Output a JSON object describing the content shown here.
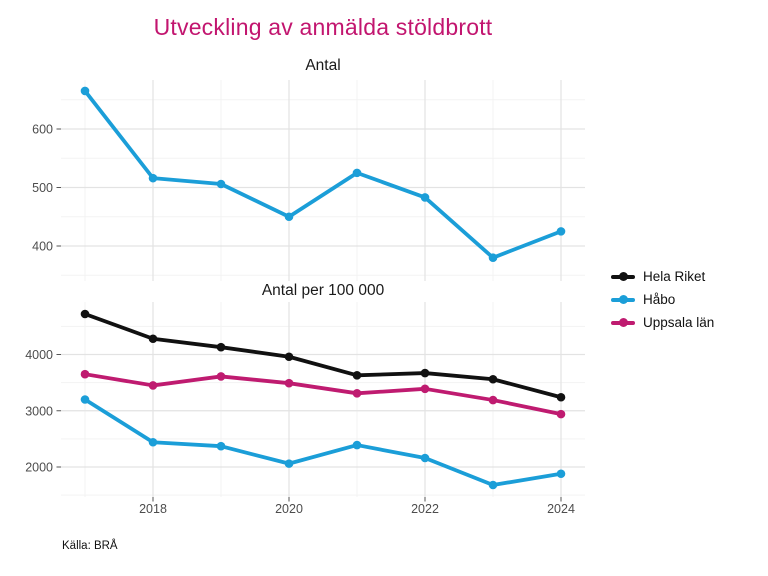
{
  "title": "Utveckling av anmälda stöldbrott",
  "caption": "Källa: BRÅ",
  "colors": {
    "title": "#c2156f",
    "hela_riket": "#111111",
    "habo": "#1b9ed8",
    "uppsala_lan": "#bf1b70",
    "axis_text": "#4d4d4d",
    "grid_major": "#e3e3e3",
    "grid_minor": "#f3f3f3"
  },
  "legend": {
    "position": "right",
    "items": [
      {
        "label": "Hela Riket",
        "color": "#111111"
      },
      {
        "label": "Håbo",
        "color": "#1b9ed8"
      },
      {
        "label": "Uppsala län",
        "color": "#bf1b70"
      }
    ]
  },
  "chart_data": [
    {
      "type": "line",
      "title": "Antal",
      "x": [
        2017,
        2018,
        2019,
        2020,
        2021,
        2022,
        2023,
        2024
      ],
      "series": [
        {
          "name": "Håbo",
          "color": "#1b9ed8",
          "values": [
            665,
            516,
            506,
            450,
            525,
            483,
            380,
            425
          ]
        }
      ],
      "ylim": [
        360,
        685
      ],
      "y_ticks": [
        400,
        500,
        600
      ],
      "y_tick_labels": [
        "400",
        "500",
        "600"
      ],
      "y_minor_ticks": [
        350,
        450,
        550,
        650
      ],
      "x_ticks": [
        2018,
        2020,
        2022,
        2024
      ],
      "x_minor_ticks": [
        2017,
        2019,
        2021,
        2023
      ],
      "grid": true
    },
    {
      "type": "line",
      "title": "Antal per 100 000",
      "x": [
        2017,
        2018,
        2019,
        2020,
        2021,
        2022,
        2023,
        2024
      ],
      "series": [
        {
          "name": "Hela Riket",
          "color": "#111111",
          "values": [
            4720,
            4280,
            4130,
            3960,
            3630,
            3670,
            3560,
            3240
          ]
        },
        {
          "name": "Håbo",
          "color": "#1b9ed8",
          "values": [
            3200,
            2440,
            2370,
            2060,
            2390,
            2160,
            1680,
            1880
          ]
        },
        {
          "name": "Uppsala län",
          "color": "#bf1b70",
          "values": [
            3650,
            3450,
            3610,
            3490,
            3310,
            3390,
            3190,
            2940
          ]
        }
      ],
      "ylim": [
        1460,
        4940
      ],
      "y_ticks": [
        2000,
        3000,
        4000
      ],
      "y_tick_labels": [
        "2000",
        "3000",
        "4000"
      ],
      "y_minor_ticks": [
        1500,
        2500,
        3500,
        4500
      ],
      "x_ticks": [
        2018,
        2020,
        2022,
        2024
      ],
      "x_tick_labels": [
        "2018",
        "2020",
        "2022",
        "2024"
      ],
      "x_minor_ticks": [
        2017,
        2019,
        2021,
        2023
      ],
      "grid": true
    }
  ]
}
